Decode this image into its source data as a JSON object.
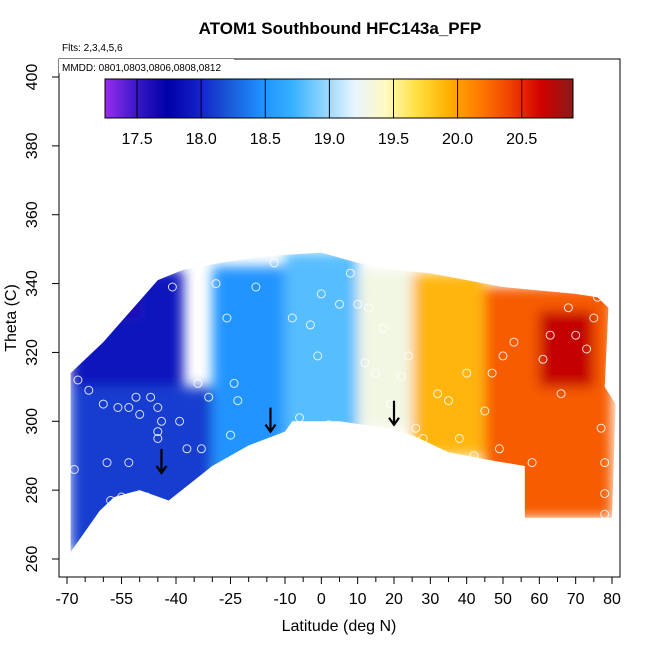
{
  "chart_data": {
    "type": "heatmap",
    "title": "ATOM1 Southbound HFC143a_PFP",
    "subtitle_flights": "Flts: 2,3,4,5,6",
    "subtitle_dates": "MMDD: 0801,0803,0806,0808,0812",
    "xlabel": "Latitude (deg N)",
    "ylabel": "Theta (C)",
    "xlim": [
      -70,
      80
    ],
    "ylim": [
      260,
      400
    ],
    "x_ticks": [
      "-70",
      "-55",
      "-40",
      "-25",
      "-10",
      "0",
      "10",
      "20",
      "30",
      "40",
      "50",
      "60",
      "70",
      "80"
    ],
    "x_tick_values": [
      -70,
      -55,
      -40,
      -25,
      -10,
      0,
      10,
      20,
      30,
      40,
      50,
      60,
      70,
      80
    ],
    "x_minor_ticks": [
      -65,
      -60,
      -50,
      -45,
      -35,
      -30,
      -20,
      -15,
      -5,
      5,
      15,
      25,
      35,
      45,
      55,
      65,
      75
    ],
    "y_ticks": [
      "260",
      "280",
      "300",
      "320",
      "340",
      "360",
      "380",
      "400"
    ],
    "y_tick_values": [
      260,
      280,
      300,
      320,
      340,
      360,
      380,
      400
    ],
    "colorbar": {
      "range": [
        17.25,
        20.9
      ],
      "tick_labels": [
        "17.5",
        "18.0",
        "18.5",
        "19.0",
        "19.5",
        "20.0",
        "20.5"
      ],
      "tick_values": [
        17.5,
        18.0,
        18.5,
        19.0,
        19.5,
        20.0,
        20.5
      ],
      "colors": [
        "#9a2cf0",
        "#3a18c8",
        "#0000a8",
        "#1420c8",
        "#1a5ad8",
        "#1e90ff",
        "#35b0ff",
        "#8fd4ff",
        "#e8f4ff",
        "#fffac0",
        "#ffe040",
        "#ffb000",
        "#ff7b00",
        "#f04000",
        "#d00000",
        "#8a1a1a"
      ]
    },
    "surface_outline_lat_theta": [
      [
        -69,
        262
      ],
      [
        -61,
        274
      ],
      [
        -57,
        278
      ],
      [
        -50,
        280
      ],
      [
        -42,
        277
      ],
      [
        -30,
        287
      ],
      [
        -20,
        293
      ],
      [
        -10,
        297
      ],
      [
        -8,
        300
      ],
      [
        5,
        300
      ],
      [
        18,
        298
      ],
      [
        25,
        296
      ],
      [
        35,
        291
      ],
      [
        45,
        289
      ],
      [
        56,
        287
      ],
      [
        56,
        272
      ],
      [
        79,
        272
      ]
    ],
    "upper_outline_lat_theta": [
      [
        -69,
        314
      ],
      [
        -60,
        323
      ],
      [
        -55,
        329
      ],
      [
        -50,
        335
      ],
      [
        -45,
        341
      ],
      [
        -38,
        344
      ],
      [
        -28,
        346
      ],
      [
        -15,
        348
      ],
      [
        0,
        349
      ],
      [
        10,
        346
      ],
      [
        20,
        344
      ],
      [
        30,
        343
      ],
      [
        40,
        341
      ],
      [
        50,
        339
      ],
      [
        60,
        338
      ],
      [
        70,
        337
      ],
      [
        76,
        336
      ],
      [
        79,
        333
      ],
      [
        78,
        310
      ],
      [
        81,
        305
      ],
      [
        80,
        272
      ]
    ],
    "region_values": [
      {
        "lat_range": [
          -69,
          -38
        ],
        "theta_range": [
          310,
          344
        ],
        "value": 17.9
      },
      {
        "lat_range": [
          -63,
          -50
        ],
        "theta_range": [
          330,
          344
        ],
        "value": 17.6
      },
      {
        "lat_range": [
          -69,
          -30
        ],
        "theta_range": [
          262,
          310
        ],
        "value": 18.1
      },
      {
        "lat_range": [
          -30,
          -10
        ],
        "theta_range": [
          285,
          345
        ],
        "value": 18.5
      },
      {
        "lat_range": [
          -10,
          10
        ],
        "theta_range": [
          295,
          349
        ],
        "value": 18.8
      },
      {
        "lat_range": [
          10,
          25
        ],
        "theta_range": [
          298,
          344
        ],
        "value": 19.3
      },
      {
        "lat_range": [
          25,
          45
        ],
        "theta_range": [
          290,
          343
        ],
        "value": 19.9
      },
      {
        "lat_range": [
          45,
          80
        ],
        "theta_range": [
          272,
          339
        ],
        "value": 20.3
      },
      {
        "lat_range": [
          60,
          75
        ],
        "theta_range": [
          310,
          332
        ],
        "value": 20.7
      }
    ],
    "arrows_lat_theta": [
      [
        -44,
        285
      ],
      [
        -14,
        297
      ],
      [
        20,
        299
      ]
    ],
    "sample_points_lat_theta": [
      [
        -68,
        286
      ],
      [
        -67,
        312
      ],
      [
        -64,
        309
      ],
      [
        -60,
        305
      ],
      [
        -59,
        288
      ],
      [
        -58,
        277
      ],
      [
        -56,
        304
      ],
      [
        -55,
        278
      ],
      [
        -53,
        288
      ],
      [
        -53,
        304
      ],
      [
        -51,
        307
      ],
      [
        -50,
        302
      ],
      [
        -48,
        278
      ],
      [
        -47,
        307
      ],
      [
        -45,
        295
      ],
      [
        -45,
        304
      ],
      [
        -45,
        297
      ],
      [
        -44,
        300
      ],
      [
        -41,
        339
      ],
      [
        -39,
        300
      ],
      [
        -37,
        292
      ],
      [
        -34,
        311
      ],
      [
        -33,
        292
      ],
      [
        -31,
        307
      ],
      [
        -29,
        340
      ],
      [
        -26,
        330
      ],
      [
        -25,
        296
      ],
      [
        -24,
        311
      ],
      [
        -23,
        306
      ],
      [
        -18,
        339
      ],
      [
        -13,
        346
      ],
      [
        -8,
        330
      ],
      [
        -6,
        301
      ],
      [
        -3,
        328
      ],
      [
        -1,
        319
      ],
      [
        0,
        337
      ],
      [
        2,
        299
      ],
      [
        5,
        334
      ],
      [
        8,
        343
      ],
      [
        10,
        334
      ],
      [
        12,
        317
      ],
      [
        13,
        333
      ],
      [
        15,
        314
      ],
      [
        17,
        327
      ],
      [
        19,
        305
      ],
      [
        22,
        313
      ],
      [
        24,
        319
      ],
      [
        26,
        298
      ],
      [
        28,
        295
      ],
      [
        32,
        308
      ],
      [
        35,
        306
      ],
      [
        38,
        295
      ],
      [
        40,
        314
      ],
      [
        42,
        290
      ],
      [
        45,
        303
      ],
      [
        47,
        314
      ],
      [
        49,
        292
      ],
      [
        50,
        319
      ],
      [
        53,
        323
      ],
      [
        58,
        288
      ],
      [
        61,
        318
      ],
      [
        63,
        325
      ],
      [
        66,
        308
      ],
      [
        68,
        333
      ],
      [
        70,
        325
      ],
      [
        73,
        321
      ],
      [
        75,
        330
      ],
      [
        76,
        336
      ],
      [
        77,
        298
      ],
      [
        78,
        288
      ],
      [
        78,
        279
      ],
      [
        78,
        273
      ]
    ]
  }
}
